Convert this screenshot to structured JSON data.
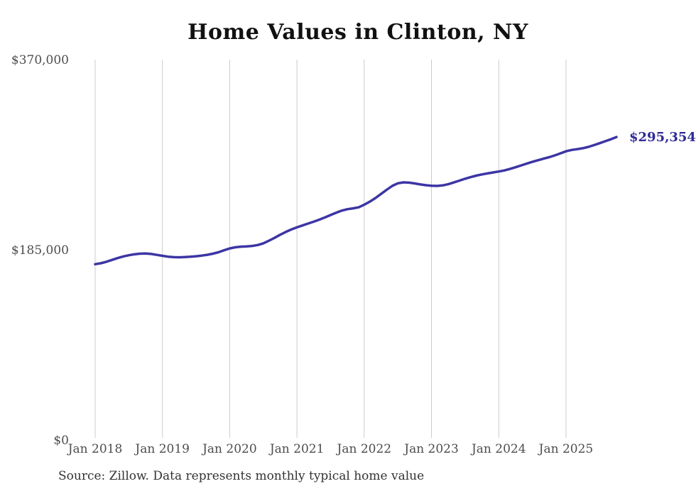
{
  "title": "Home Values in Clinton, NY",
  "source_note": "Source: Zillow. Data represents monthly typical home value",
  "end_label": "$295,354",
  "colors": {
    "line": "#3c35a4",
    "end_label": "#2f2a96",
    "gridline": "#cccccc",
    "axis_text": "#4d4d4d",
    "title_text": "#111111",
    "source_text": "#333333",
    "background": "#ffffff"
  },
  "chart_data": {
    "type": "line",
    "title": "Home Values in Clinton, NY",
    "xlabel": "",
    "ylabel": "",
    "ylim": [
      0,
      370000
    ],
    "grid": "vertical-only",
    "legend_position": "none",
    "annotation": {
      "text": "$295,354",
      "position": "end-of-line"
    },
    "y_ticks": [
      {
        "label": "$370,000",
        "value": 370000
      },
      {
        "label": "$185,000",
        "value": 185000
      },
      {
        "label": "$0",
        "value": 0
      }
    ],
    "x_ticks": [
      "Jan 2018",
      "Jan 2019",
      "Jan 2020",
      "Jan 2021",
      "Jan 2022",
      "Jan 2023",
      "Jan 2024",
      "Jan 2025"
    ],
    "x_tick_month_indices": [
      0,
      12,
      24,
      36,
      48,
      60,
      72,
      84
    ],
    "x": [
      "2018-01",
      "2018-02",
      "2018-03",
      "2018-04",
      "2018-05",
      "2018-06",
      "2018-07",
      "2018-08",
      "2018-09",
      "2018-10",
      "2018-11",
      "2018-12",
      "2019-01",
      "2019-02",
      "2019-03",
      "2019-04",
      "2019-05",
      "2019-06",
      "2019-07",
      "2019-08",
      "2019-09",
      "2019-10",
      "2019-11",
      "2019-12",
      "2020-01",
      "2020-02",
      "2020-03",
      "2020-04",
      "2020-05",
      "2020-06",
      "2020-07",
      "2020-08",
      "2020-09",
      "2020-10",
      "2020-11",
      "2020-12",
      "2021-01",
      "2021-02",
      "2021-03",
      "2021-04",
      "2021-05",
      "2021-06",
      "2021-07",
      "2021-08",
      "2021-09",
      "2021-10",
      "2021-11",
      "2021-12",
      "2022-01",
      "2022-02",
      "2022-03",
      "2022-04",
      "2022-05",
      "2022-06",
      "2022-07",
      "2022-08",
      "2022-09",
      "2022-10",
      "2022-11",
      "2022-12",
      "2023-01",
      "2023-02",
      "2023-03",
      "2023-04",
      "2023-05",
      "2023-06",
      "2023-07",
      "2023-08",
      "2023-09",
      "2023-10",
      "2023-11",
      "2023-12",
      "2024-01",
      "2024-02",
      "2024-03",
      "2024-04",
      "2024-05",
      "2024-06",
      "2024-07",
      "2024-08",
      "2024-09",
      "2024-10",
      "2024-11",
      "2024-12",
      "2025-01",
      "2025-02",
      "2025-03",
      "2025-04",
      "2025-05",
      "2025-06",
      "2025-07",
      "2025-08",
      "2025-09",
      "2025-10"
    ],
    "series": [
      {
        "name": "Typical home value",
        "values": [
          171700,
          172600,
          174000,
          175800,
          177600,
          179200,
          180400,
          181300,
          181900,
          182100,
          181600,
          180700,
          179800,
          179000,
          178500,
          178400,
          178600,
          178900,
          179400,
          180000,
          180800,
          181900,
          183300,
          185200,
          187000,
          188100,
          188700,
          189000,
          189400,
          190300,
          192000,
          194500,
          197300,
          200300,
          203000,
          205400,
          207500,
          209400,
          211200,
          213000,
          215000,
          217200,
          219500,
          221700,
          223800,
          225200,
          226000,
          227000,
          229500,
          232500,
          236000,
          240000,
          244000,
          247800,
          250400,
          251300,
          251000,
          250200,
          249300,
          248500,
          248000,
          247800,
          248300,
          249500,
          251200,
          253000,
          254800,
          256400,
          257800,
          259000,
          260000,
          260900,
          261800,
          262900,
          264300,
          266000,
          267800,
          269500,
          271200,
          272800,
          274300,
          275800,
          277500,
          279500,
          281500,
          282800,
          283600,
          284500,
          285800,
          287500,
          289400,
          291300,
          293200,
          295354
        ]
      }
    ]
  }
}
